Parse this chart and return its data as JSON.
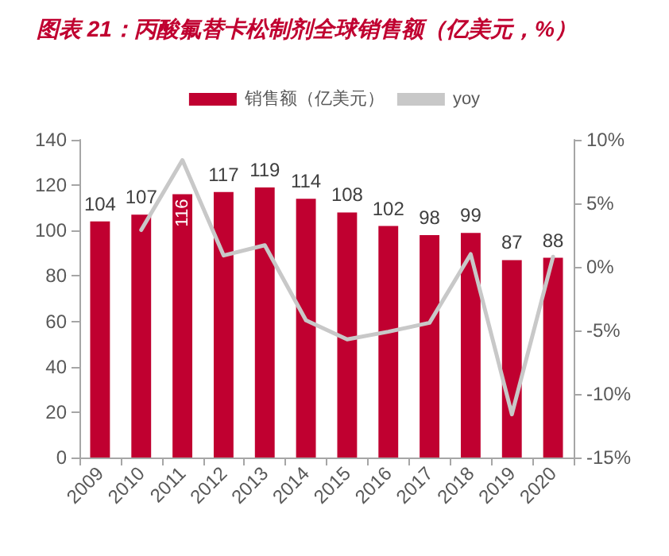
{
  "chart_data": {
    "type": "bar",
    "title": "图表 21：丙酸氟替卡松制剂全球销售额（亿美元，%）",
    "categories": [
      "2009",
      "2010",
      "2011",
      "2012",
      "2013",
      "2014",
      "2015",
      "2016",
      "2017",
      "2018",
      "2019",
      "2020"
    ],
    "series": [
      {
        "name": "销售额（亿美元）",
        "color": "#c00030",
        "values": [
          104,
          107,
          116,
          117,
          119,
          114,
          108,
          102,
          98,
          99,
          87,
          88
        ],
        "data_labels": true
      },
      {
        "name": "yoy",
        "type": "line",
        "axis": "y2",
        "color": "#c8c8c8",
        "values": [
          null,
          2.9,
          8.4,
          0.9,
          1.7,
          -4.2,
          -5.7,
          -5.1,
          -4.4,
          1.0,
          -11.6,
          0.8
        ]
      }
    ],
    "ylim": [
      0,
      140
    ],
    "yticks": [
      0,
      20,
      40,
      60,
      80,
      100,
      120,
      140
    ],
    "y2lim": [
      -15,
      10
    ],
    "y2ticks": [
      {
        "value": -15,
        "label": "-15%"
      },
      {
        "value": -10,
        "label": "-10%"
      },
      {
        "value": -5,
        "label": "-5%"
      },
      {
        "value": 0,
        "label": "0%"
      },
      {
        "value": 5,
        "label": "5%"
      },
      {
        "value": 10,
        "label": "10%"
      }
    ],
    "legend": "top",
    "grid": false,
    "marker": "none"
  }
}
